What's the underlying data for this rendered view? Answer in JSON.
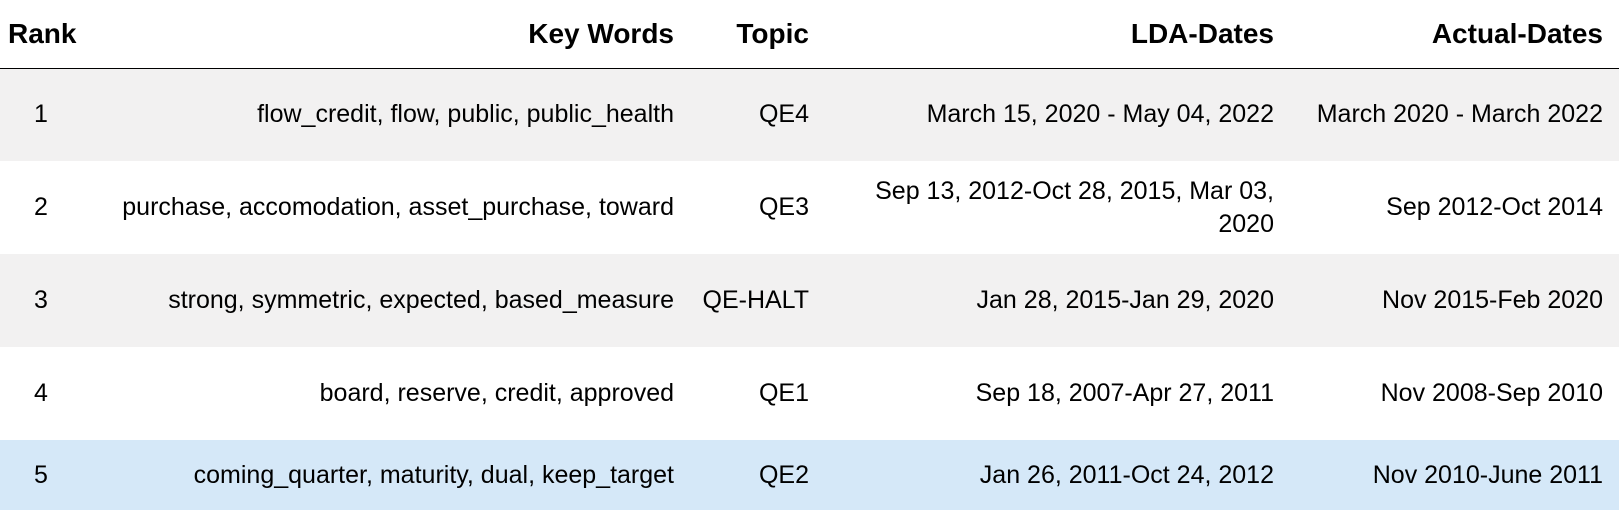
{
  "table": {
    "headers": {
      "rank": "Rank",
      "key_words": "Key Words",
      "topic": "Topic",
      "lda_dates": "LDA-Dates",
      "actual_dates": "Actual-Dates"
    },
    "rows": [
      {
        "rank": "1",
        "key_words": "flow_credit, flow, public, public_health",
        "topic": "QE4",
        "lda_dates": "March 15, 2020 - May 04, 2022",
        "actual_dates": "March 2020 - March 2022"
      },
      {
        "rank": "2",
        "key_words": "purchase, accomodation, asset_purchase, toward",
        "topic": "QE3",
        "lda_dates": "Sep 13, 2012-Oct 28, 2015, Mar 03, 2020",
        "actual_dates": "Sep 2012-Oct 2014"
      },
      {
        "rank": "3",
        "key_words": "strong, symmetric, expected, based_measure",
        "topic": "QE-HALT",
        "lda_dates": "Jan 28, 2015-Jan 29, 2020",
        "actual_dates": "Nov 2015-Feb 2020"
      },
      {
        "rank": "4",
        "key_words": "board, reserve, credit, approved",
        "topic": "QE1",
        "lda_dates": "Sep 18, 2007-Apr 27, 2011",
        "actual_dates": "Nov 2008-Sep 2010"
      },
      {
        "rank": "5",
        "key_words": "coming_quarter, maturity, dual, keep_target",
        "topic": "QE2",
        "lda_dates": "Jan 26, 2011-Oct 24, 2012",
        "actual_dates": "Nov 2010-June 2011"
      }
    ],
    "highlighted_row_color": "#d5e8f8",
    "striped_row_color": "#f2f1f1"
  }
}
